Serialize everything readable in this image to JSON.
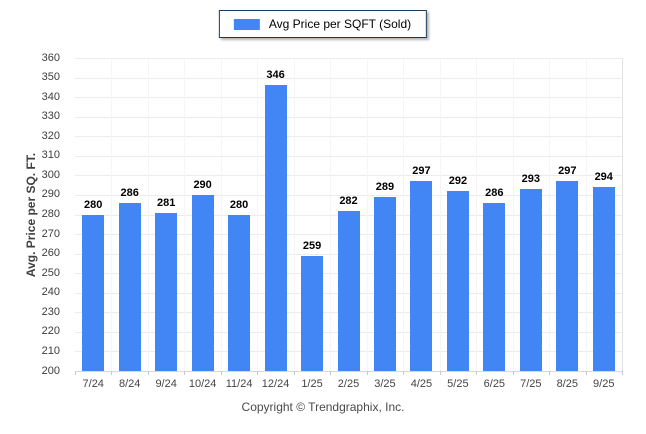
{
  "legend": {
    "label": "Avg Price per SQFT (Sold)",
    "swatch_color": "#4285F4"
  },
  "chart_data": {
    "type": "bar",
    "categories": [
      "7/24",
      "8/24",
      "9/24",
      "10/24",
      "11/24",
      "12/24",
      "1/25",
      "2/25",
      "3/25",
      "4/25",
      "5/25",
      "6/25",
      "7/25",
      "8/25",
      "9/25"
    ],
    "values": [
      280,
      286,
      281,
      290,
      280,
      346,
      259,
      282,
      289,
      297,
      292,
      286,
      293,
      297,
      294
    ],
    "title": "",
    "xlabel": "",
    "ylabel": "Avg. Price per SQ. FT.",
    "ylim": [
      200,
      360
    ],
    "ytick_step": 10,
    "bar_color": "#4285F4",
    "grid": "horizontal",
    "legend_position": "top-center",
    "data_labels": "above-bars"
  },
  "footer": {
    "copyright": "Copyright © Trendgraphix, Inc."
  }
}
